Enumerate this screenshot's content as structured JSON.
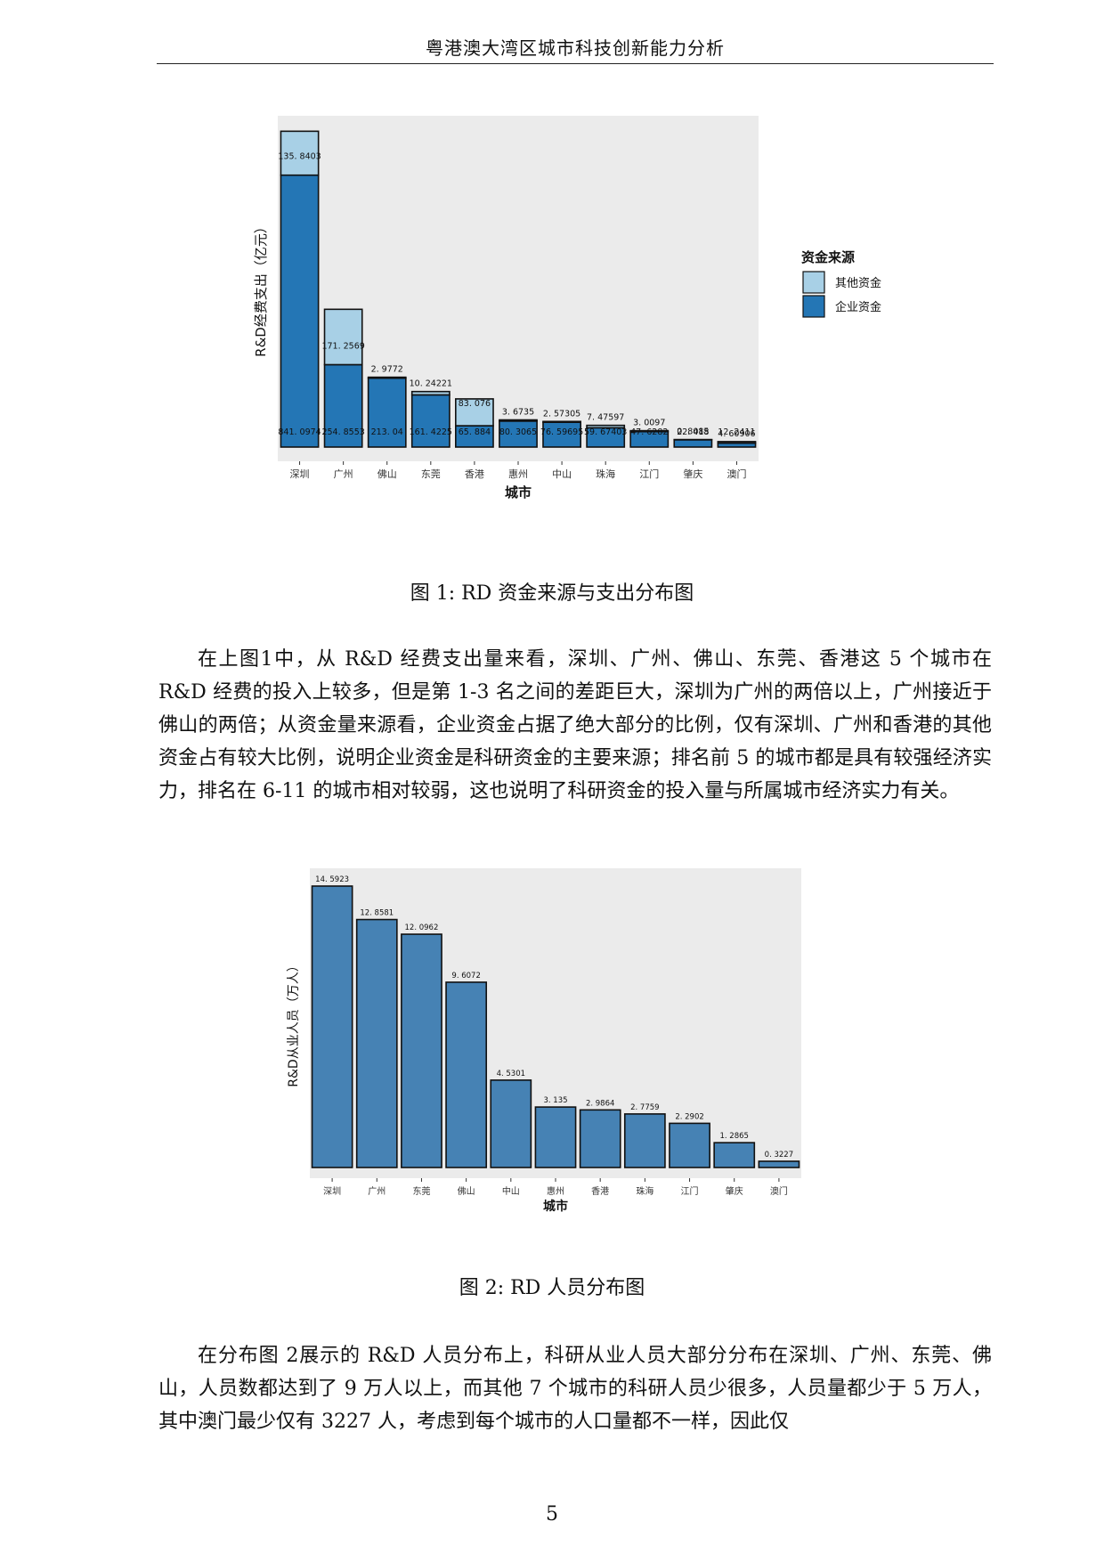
{
  "header": {
    "title": "粤港澳大湾区城市科技创新能力分析"
  },
  "figures": [
    {
      "caption": "图 1: RD 资金来源与支出分布图",
      "chart_data": {
        "type": "bar",
        "stacked": true,
        "categories": [
          "深圳",
          "广州",
          "佛山",
          "东莞",
          "香港",
          "惠州",
          "中山",
          "珠海",
          "江门",
          "肇庆",
          "澳门"
        ],
        "series": [
          {
            "name": "企业资金",
            "values": [
              841.0974,
              254.8553,
              213.04,
              161.4225,
              65.884,
              80.3065,
              76.59695,
              59.67403,
              47.6282,
              22.418,
              12.2411
            ],
            "labels": [
              "841. 0974",
              "254. 8553",
              "213. 04",
              "161. 4225",
              "65. 884",
              "80. 3065",
              "76. 59695",
              "59. 67403",
              "47. 6282",
              "22. 418",
              "12. 2411"
            ]
          },
          {
            "name": "其他资金",
            "values": [
              135.8403,
              171.2569,
              2.9772,
              10.24221,
              83.076,
              3.6735,
              2.57305,
              7.47597,
              3.0097,
              0.8085,
              4.60906
            ],
            "labels": [
              "135. 8403",
              "171. 2569",
              "2. 9772",
              "10. 24221",
              "83. 076",
              "3. 6735",
              "2. 57305",
              "7. 47597",
              "3. 0097",
              "0. 8085",
              "4. 60906"
            ]
          }
        ],
        "xlabel": "城市",
        "ylabel": "R&D经费支出（亿元）",
        "legend": {
          "title": "资金来源",
          "position": "right",
          "items": [
            "其他资金",
            "企业资金"
          ]
        },
        "colors": {
          "企业资金": "#2476b5",
          "其他资金": "#a8d0e6",
          "panel": "#ebebeb"
        },
        "grid": false
      }
    },
    {
      "caption": "图 2: RD 人员分布图",
      "chart_data": {
        "type": "bar",
        "categories": [
          "深圳",
          "广州",
          "东莞",
          "佛山",
          "中山",
          "惠州",
          "香港",
          "珠海",
          "江门",
          "肇庆",
          "澳门"
        ],
        "values": [
          14.5923,
          12.8581,
          12.0962,
          9.6072,
          4.5301,
          3.135,
          2.9864,
          2.7759,
          2.2902,
          1.2865,
          0.3227
        ],
        "labels": [
          "14. 5923",
          "12. 8581",
          "12. 0962",
          "9. 6072",
          "4. 5301",
          "3. 135",
          "2. 9864",
          "2. 7759",
          "2. 2902",
          "1. 2865",
          "0. 3227"
        ],
        "xlabel": "城市",
        "ylabel": "R&D从业人员（万人）",
        "colors": {
          "bar": "#4682b4",
          "panel": "#ebebeb"
        },
        "grid": false
      }
    }
  ],
  "paragraphs": [
    "在上图1中，从 R&D 经费支出量来看，深圳、广州、佛山、东莞、香港这 5 个城市在 R&D 经费的投入上较多，但是第 1-3 名之间的差距巨大，深圳为广州的两倍以上，广州接近于佛山的两倍；从资金量来源看，企业资金占据了绝大部分的比例，仅有深圳、广州和香港的其他资金占有较大比例，说明企业资金是科研资金的主要来源；排名前 5 的城市都是具有较强经济实力，排名在 6-11 的城市相对较弱，这也说明了科研资金的投入量与所属城市经济实力有关。",
    "在分布图 2展示的 R&D 人员分布上，科研从业人员大部分分布在深圳、广州、东莞、佛山，人员数都达到了 9 万人以上，而其他 7 个城市的科研人员少很多，人员量都少于 5 万人，其中澳门最少仅有 3227 人，考虑到每个城市的人口量都不一样，因此仅"
  ],
  "page_number": "5"
}
